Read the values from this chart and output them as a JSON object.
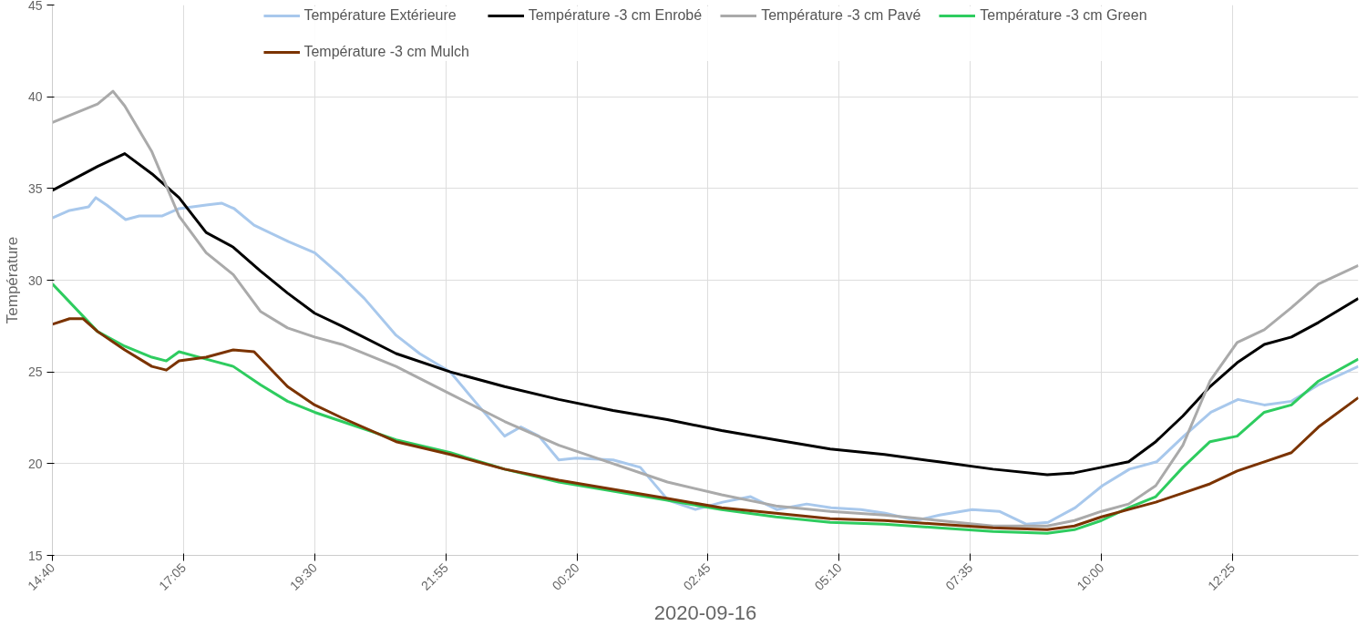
{
  "chart_data": {
    "type": "line",
    "xlabel": "2020-09-16",
    "ylabel": "Température",
    "xlim": [
      "2020-09-15T14:40",
      "2020-09-16T14:44"
    ],
    "ylim": [
      15,
      45
    ],
    "xticks": [
      {
        "value": "2020-09-15T14:40",
        "label": "14:40"
      },
      {
        "value": "2020-09-15T17:05",
        "label": "17:05"
      },
      {
        "value": "2020-09-15T19:30",
        "label": "19:30"
      },
      {
        "value": "2020-09-15T21:55",
        "label": "21:55"
      },
      {
        "value": "2020-09-16T00:20",
        "label": "00:20"
      },
      {
        "value": "2020-09-16T02:45",
        "label": "02:45"
      },
      {
        "value": "2020-09-16T05:10",
        "label": "05:10"
      },
      {
        "value": "2020-09-16T07:35",
        "label": "07:35"
      },
      {
        "value": "2020-09-16T10:00",
        "label": "10:00"
      },
      {
        "value": "2020-09-16T12:25",
        "label": "12:25"
      }
    ],
    "yticks": [
      15,
      20,
      25,
      30,
      35,
      40,
      45
    ],
    "grid": true,
    "legend": "top",
    "marker": "none",
    "line_style": "solid",
    "series": [
      {
        "name": "Température Extérieure",
        "color": "#a8c8ec",
        "x": [
          "2020-09-15T14:40",
          "2020-09-15T14:59",
          "2020-09-15T15:20",
          "2020-09-15T15:28",
          "2020-09-15T15:40",
          "2020-09-15T16:01",
          "2020-09-15T16:16",
          "2020-09-15T16:41",
          "2020-09-15T17:00",
          "2020-09-15T17:30",
          "2020-09-15T17:47",
          "2020-09-15T18:01",
          "2020-09-15T18:23",
          "2020-09-15T19:01",
          "2020-09-15T19:30",
          "2020-09-15T20:00",
          "2020-09-15T20:25",
          "2020-09-15T21:00",
          "2020-09-15T21:26",
          "2020-09-15T22:00",
          "2020-09-15T22:27",
          "2020-09-15T23:00",
          "2020-09-15T23:18",
          "2020-09-15T23:38",
          "2020-09-16T00:00",
          "2020-09-16T00:19",
          "2020-09-16T01:00",
          "2020-09-16T01:30",
          "2020-09-16T02:01",
          "2020-09-16T02:31",
          "2020-09-16T03:01",
          "2020-09-16T03:32",
          "2020-09-16T04:01",
          "2020-09-16T04:34",
          "2020-09-16T05:01",
          "2020-09-16T05:34",
          "2020-09-16T06:01",
          "2020-09-16T06:35",
          "2020-09-16T07:01",
          "2020-09-16T07:37",
          "2020-09-16T08:07",
          "2020-09-16T08:37",
          "2020-09-16T09:01",
          "2020-09-16T09:31",
          "2020-09-16T10:01",
          "2020-09-16T10:31",
          "2020-09-16T11:01",
          "2020-09-16T11:31",
          "2020-09-16T12:01",
          "2020-09-16T12:31",
          "2020-09-16T13:00",
          "2020-09-16T13:30",
          "2020-09-16T14:00",
          "2020-09-16T14:44"
        ],
        "values": [
          33.4,
          33.8,
          34.0,
          34.5,
          34.1,
          33.3,
          33.5,
          33.5,
          33.9,
          34.1,
          34.2,
          33.9,
          33.0,
          32.1,
          31.5,
          30.2,
          29.0,
          27.0,
          26.0,
          25.0,
          23.4,
          21.5,
          22.0,
          21.5,
          20.2,
          20.3,
          20.2,
          19.8,
          18.0,
          17.5,
          17.9,
          18.2,
          17.5,
          17.8,
          17.6,
          17.5,
          17.3,
          16.9,
          17.2,
          17.5,
          17.4,
          16.7,
          16.8,
          17.6,
          18.8,
          19.7,
          20.1,
          21.5,
          22.8,
          23.5,
          23.2,
          23.4,
          24.3,
          25.3
        ]
      },
      {
        "name": "Température -3 cm Enrobé",
        "color": "#000000",
        "x": [
          "2020-09-15T14:40",
          "2020-09-15T15:30",
          "2020-09-15T16:00",
          "2020-09-15T16:30",
          "2020-09-15T17:00",
          "2020-09-15T17:30",
          "2020-09-15T18:00",
          "2020-09-15T18:30",
          "2020-09-15T19:00",
          "2020-09-15T19:30",
          "2020-09-15T20:00",
          "2020-09-15T21:00",
          "2020-09-15T22:00",
          "2020-09-15T23:00",
          "2020-09-16T00:00",
          "2020-09-16T01:00",
          "2020-09-16T02:00",
          "2020-09-16T03:00",
          "2020-09-16T04:00",
          "2020-09-16T05:00",
          "2020-09-16T06:00",
          "2020-09-16T07:00",
          "2020-09-16T08:00",
          "2020-09-16T09:00",
          "2020-09-16T09:30",
          "2020-09-16T10:00",
          "2020-09-16T10:30",
          "2020-09-16T11:00",
          "2020-09-16T11:30",
          "2020-09-16T12:00",
          "2020-09-16T12:30",
          "2020-09-16T13:00",
          "2020-09-16T13:30",
          "2020-09-16T14:00",
          "2020-09-16T14:44"
        ],
        "values": [
          34.9,
          36.2,
          36.9,
          35.8,
          34.5,
          32.6,
          31.8,
          30.5,
          29.3,
          28.2,
          27.5,
          26.0,
          25.0,
          24.2,
          23.5,
          22.9,
          22.4,
          21.8,
          21.3,
          20.8,
          20.5,
          20.1,
          19.7,
          19.4,
          19.5,
          19.8,
          20.1,
          21.2,
          22.6,
          24.2,
          25.5,
          26.5,
          26.9,
          27.7,
          29.0
        ]
      },
      {
        "name": "Température -3 cm Pavé",
        "color": "#aaaaaa",
        "x": [
          "2020-09-15T14:40",
          "2020-09-15T15:30",
          "2020-09-15T15:47",
          "2020-09-15T16:00",
          "2020-09-15T16:30",
          "2020-09-15T17:00",
          "2020-09-15T17:30",
          "2020-09-15T18:00",
          "2020-09-15T18:30",
          "2020-09-15T19:00",
          "2020-09-15T19:30",
          "2020-09-15T20:00",
          "2020-09-15T21:00",
          "2020-09-15T22:00",
          "2020-09-15T23:00",
          "2020-09-16T00:00",
          "2020-09-16T01:00",
          "2020-09-16T02:00",
          "2020-09-16T03:00",
          "2020-09-16T04:00",
          "2020-09-16T05:00",
          "2020-09-16T06:00",
          "2020-09-16T07:00",
          "2020-09-16T08:00",
          "2020-09-16T09:00",
          "2020-09-16T09:30",
          "2020-09-16T10:00",
          "2020-09-16T10:30",
          "2020-09-16T11:00",
          "2020-09-16T11:30",
          "2020-09-16T12:00",
          "2020-09-16T12:30",
          "2020-09-16T13:00",
          "2020-09-16T13:30",
          "2020-09-16T14:00",
          "2020-09-16T14:44"
        ],
        "values": [
          38.6,
          39.6,
          40.3,
          39.5,
          37.0,
          33.5,
          31.5,
          30.3,
          28.3,
          27.4,
          26.9,
          26.5,
          25.3,
          23.8,
          22.3,
          21.0,
          20.0,
          19.0,
          18.3,
          17.7,
          17.4,
          17.2,
          16.9,
          16.6,
          16.6,
          16.9,
          17.4,
          17.8,
          18.8,
          21.0,
          24.5,
          26.6,
          27.3,
          28.5,
          29.8,
          30.8
        ]
      },
      {
        "name": "Température -3 cm Green",
        "color": "#2ecc5f",
        "x": [
          "2020-09-15T14:40",
          "2020-09-15T15:30",
          "2020-09-15T16:00",
          "2020-09-15T16:30",
          "2020-09-15T16:46",
          "2020-09-15T17:00",
          "2020-09-15T17:30",
          "2020-09-15T18:00",
          "2020-09-15T18:30",
          "2020-09-15T19:00",
          "2020-09-15T19:30",
          "2020-09-15T20:00",
          "2020-09-15T21:00",
          "2020-09-15T22:00",
          "2020-09-15T23:00",
          "2020-09-16T00:00",
          "2020-09-16T01:00",
          "2020-09-16T02:00",
          "2020-09-16T03:00",
          "2020-09-16T04:00",
          "2020-09-16T05:00",
          "2020-09-16T06:00",
          "2020-09-16T07:00",
          "2020-09-16T08:00",
          "2020-09-16T09:00",
          "2020-09-16T09:30",
          "2020-09-16T10:00",
          "2020-09-16T10:30",
          "2020-09-16T11:00",
          "2020-09-16T11:30",
          "2020-09-16T12:00",
          "2020-09-16T12:30",
          "2020-09-16T13:00",
          "2020-09-16T13:30",
          "2020-09-16T14:00",
          "2020-09-16T14:44"
        ],
        "values": [
          29.8,
          27.2,
          26.4,
          25.8,
          25.6,
          26.1,
          25.7,
          25.3,
          24.3,
          23.4,
          22.8,
          22.3,
          21.3,
          20.6,
          19.7,
          19.0,
          18.5,
          18.0,
          17.5,
          17.1,
          16.8,
          16.7,
          16.5,
          16.3,
          16.2,
          16.4,
          16.9,
          17.6,
          18.2,
          19.8,
          21.2,
          21.5,
          22.8,
          23.2,
          24.5,
          25.7
        ]
      },
      {
        "name": "Température -3 cm Mulch",
        "color": "#7b3300",
        "x": [
          "2020-09-15T14:40",
          "2020-09-15T14:59",
          "2020-09-15T15:14",
          "2020-09-15T15:30",
          "2020-09-15T16:00",
          "2020-09-15T16:30",
          "2020-09-15T16:46",
          "2020-09-15T17:00",
          "2020-09-15T17:30",
          "2020-09-15T18:00",
          "2020-09-15T18:23",
          "2020-09-15T19:00",
          "2020-09-15T19:30",
          "2020-09-15T20:00",
          "2020-09-15T21:00",
          "2020-09-15T22:00",
          "2020-09-15T23:00",
          "2020-09-16T00:00",
          "2020-09-16T01:00",
          "2020-09-16T02:00",
          "2020-09-16T03:00",
          "2020-09-16T04:00",
          "2020-09-16T05:00",
          "2020-09-16T06:00",
          "2020-09-16T07:00",
          "2020-09-16T08:00",
          "2020-09-16T09:00",
          "2020-09-16T09:30",
          "2020-09-16T10:00",
          "2020-09-16T10:30",
          "2020-09-16T11:00",
          "2020-09-16T11:30",
          "2020-09-16T12:00",
          "2020-09-16T12:30",
          "2020-09-16T13:00",
          "2020-09-16T13:30",
          "2020-09-16T14:00",
          "2020-09-16T14:44"
        ],
        "values": [
          27.6,
          27.9,
          27.9,
          27.2,
          26.2,
          25.3,
          25.1,
          25.6,
          25.8,
          26.2,
          26.1,
          24.2,
          23.2,
          22.5,
          21.2,
          20.5,
          19.7,
          19.1,
          18.6,
          18.1,
          17.6,
          17.3,
          17.0,
          16.9,
          16.7,
          16.5,
          16.4,
          16.6,
          17.1,
          17.5,
          17.9,
          18.4,
          18.9,
          19.6,
          20.1,
          20.6,
          22.0,
          23.6
        ]
      }
    ]
  }
}
